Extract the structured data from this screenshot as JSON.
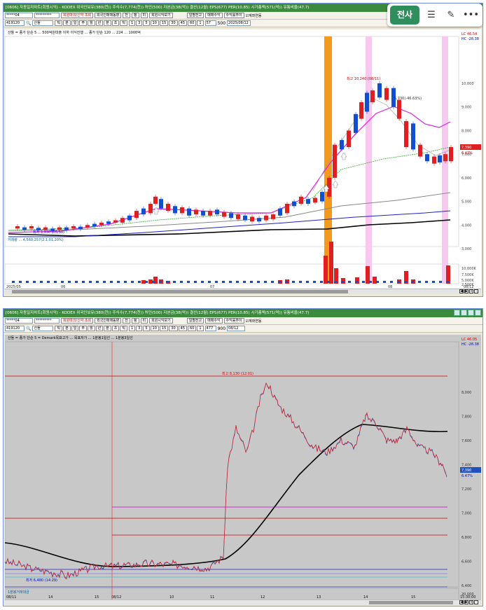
{
  "toolbar_overlay": {
    "jeonsa_label": "전사",
    "menu_icon": "menu-icon",
    "pen_icon": "pen-icon",
    "more_icon": "more-icon"
  },
  "window1": {
    "title": "[0606] 자동일자차트(회원시익) - KODEX 위국인보유(380(천)) 주식수(7,774(천)) 허인(500) 자본금(38(억)) 결산(12월) EPS(677) PER(10.85) 시가총액(571(억)) 유통비율(47.7)",
    "toolbar": {
      "code": "*****04",
      "name": "*********",
      "btn1": "회원마크/신약 조회",
      "btn2": "외국인매매동향",
      "btn3": "전",
      "btn4": "펑",
      "btn5": "미",
      "btn6": "회원시익보기",
      "btn7": "일별전고",
      "btn8": "매매수익",
      "btn9": "수익률추이",
      "chk": "계좌연동"
    },
    "toolbar2": {
      "code": "419120",
      "name": "산돌",
      "periods": [
        "틱",
        "분",
        "일",
        "주",
        "월",
        "년",
        "분",
        "초",
        "틱"
      ],
      "nums": [
        "1",
        "3",
        "5",
        "10",
        "15",
        "30",
        "45",
        "60",
        "1"
      ],
      "count": "57",
      "total": "500",
      "date": "2025/08/12"
    },
    "legend_top": "산돌 = 종가 단순 5 ... 500억원대출 이하 이식진행 ... 종가 단순 120 ... 224 ... 1000억",
    "legend_vol": "거래량 ... 4,560,257(2.1,01,20%)",
    "price_labels": [
      "10,000",
      "9,000",
      "8,000",
      "7,000",
      "6,000",
      "5,000",
      "4,000",
      "3,000"
    ],
    "vol_labels": [
      "10,000K",
      "7,500K",
      "5,000K",
      "2,500K"
    ],
    "right_top": [
      "LC 46.54",
      "HC -28.38"
    ],
    "high_annot": "최고 10,240 (08/11)",
    "low_annot": "최저 3,330 (05/30)",
    "mid_annot": "5,730(-46.63%)",
    "last_price": "7,390",
    "last_change": "6.47%",
    "date_labels": [
      "2025/05",
      "06",
      "07",
      "08",
      "08/12"
    ]
  },
  "window2": {
    "title": "[0606] 자동일자차트(회원시익) - KODEX 위국인보유(380(천)) 주식수(7,774(천)) 허인(500) 자본금(38(억)) 결산(12월) EPS(677) PER(10.85) 시가총액(571(억)) 유통비율(47.7)",
    "toolbar": {
      "code": "*****04",
      "name": "*********",
      "btn1": "회원마크/신약 조회",
      "btn2": "외국인매매동향",
      "btn3": "전",
      "btn4": "펑",
      "btn5": "미",
      "btn6": "회원시익보기",
      "btn7": "일별전고",
      "btn8": "매매수익",
      "btn9": "수익률추이",
      "chk": "계좌연동"
    },
    "toolbar2": {
      "code": "419120",
      "name": "산돌",
      "periods": [
        "틱",
        "분",
        "일",
        "주",
        "월",
        "년",
        "분",
        "초",
        "틱"
      ],
      "nums": [
        "1",
        "3",
        "5",
        "10",
        "15",
        "30",
        "45",
        "60",
        "1"
      ],
      "count": "477",
      "total": "900",
      "date": "08/12"
    },
    "legend_top": "산돌 = 종가 단순 5 = Demark목표고가 ... 목표저가 ... 1분봉1일선 ... 1분봉3일선",
    "legend_vol": "1분봉거래대금",
    "price_labels": [
      "8,000",
      "7,800",
      "7,600",
      "7,400",
      "7,200",
      "7,000",
      "6,800",
      "6,600",
      "6,400"
    ],
    "vol_labels": [
      "20,000"
    ],
    "right_top": [
      "LC 46.05",
      "HC -28.38"
    ],
    "high_annot": "최고 8,130 (12:01)",
    "low_annot": "최저 6,480 (14:29)",
    "last_price": "7,390",
    "last_change": "6.47%",
    "date_labels": [
      "08/11",
      "14",
      "15",
      "08/12",
      "10",
      "11",
      "12",
      "13",
      "14",
      "15",
      "15:30:00"
    ]
  }
}
